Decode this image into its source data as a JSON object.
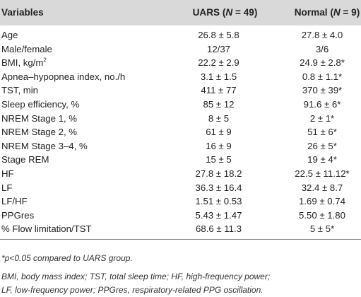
{
  "header": {
    "variables": "Variables",
    "uars_prefix": "UARS (",
    "uars_n": "N",
    "uars_suffix": " = 49)",
    "normal_prefix": "Normal (",
    "normal_n": "N",
    "normal_suffix": " = 9)"
  },
  "rows": [
    {
      "variable": "Age",
      "uars": "26.8 ± 5.8",
      "normal": "27.8 ± 4.0"
    },
    {
      "variable": "Male/female",
      "uars": "12/37",
      "normal": "3/6"
    },
    {
      "variable": "BMI, kg/m",
      "variable_sup": "2",
      "uars": "22.2 ± 2.9",
      "normal": "24.9 ± 2.8*"
    },
    {
      "variable": "Apnea–hypopnea index, no./h",
      "uars": "3.1 ± 1.5",
      "normal": "0.8 ± 1.1*"
    },
    {
      "variable": "TST, min",
      "uars": "411 ± 77",
      "normal": "370 ± 39*"
    },
    {
      "variable": "Sleep efficiency, %",
      "uars": "85 ± 12",
      "normal": "91.6 ± 6*"
    },
    {
      "variable": "NREM Stage 1, %",
      "uars": "8 ± 5",
      "normal": "2 ± 1*"
    },
    {
      "variable": "NREM Stage 2, %",
      "uars": "61 ± 9",
      "normal": "51 ± 6*"
    },
    {
      "variable": "NREM Stage 3–4, %",
      "uars": "16 ± 9",
      "normal": "26 ± 5*"
    },
    {
      "variable": "Stage REM",
      "uars": "15 ± 5",
      "normal": "19 ± 4*"
    },
    {
      "variable": "HF",
      "uars": "27.8 ± 18.2",
      "normal": "22.5 ± 11.12*"
    },
    {
      "variable": "LF",
      "uars": "36.3 ± 16.4",
      "normal": "32.4 ± 8.7"
    },
    {
      "variable": "LF/HF",
      "uars": "1.51 ± 0.53",
      "normal": "1.69 ± 0.74"
    },
    {
      "variable": "PPGres",
      "uars": "5.43 ± 1.47",
      "normal": "5.50 ± 1.80"
    },
    {
      "variable": "% Flow limitation/TST",
      "uars": "68.6 ± 11.3",
      "normal": "5 ± 5*"
    }
  ],
  "footnotes": {
    "significance": "*p<0.05 compared to UARS group.",
    "abbrev_1": "BMI, body mass index; TST, total sleep time; HF, high-frequency power;",
    "abbrev_2": "LF, low-frequency power; PPGres, respiratory-related PPG oscillation."
  }
}
